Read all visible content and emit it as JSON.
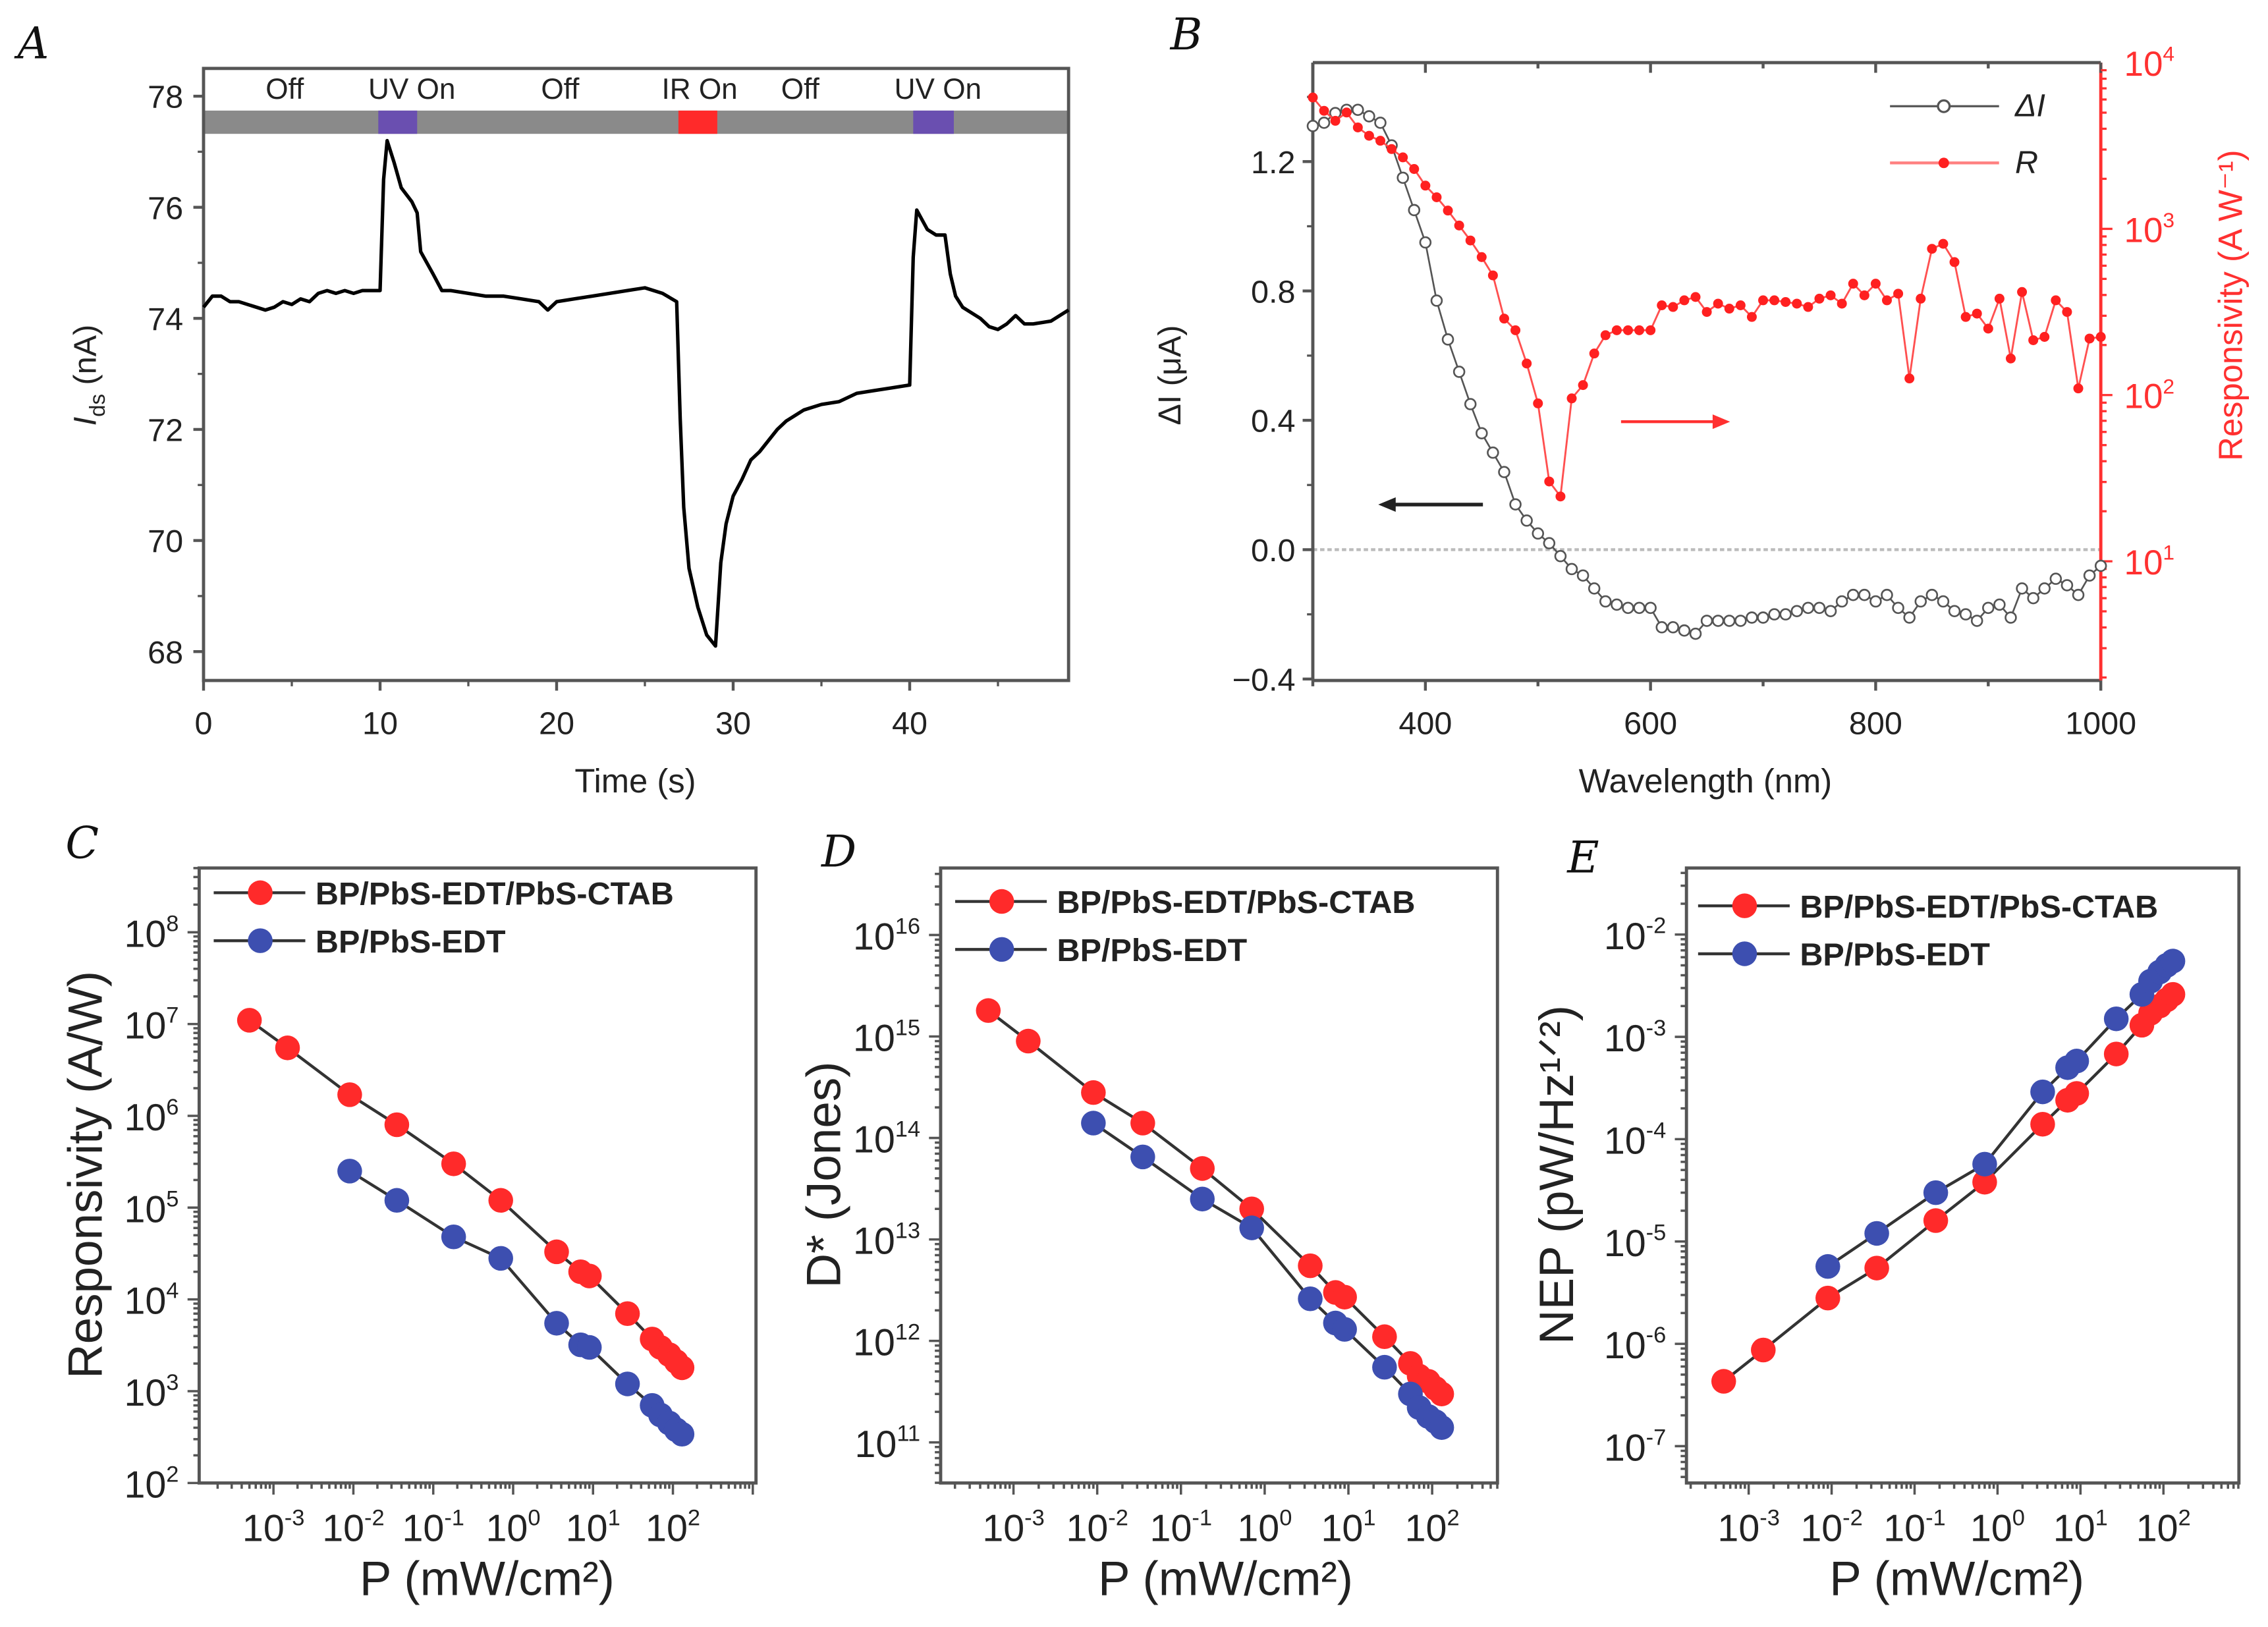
{
  "chart_data": [
    {
      "panel": "A",
      "type": "line",
      "xlabel": "Time (s)",
      "ylabel_main": "I",
      "ylabel_sub": "ds",
      "ylabel_unit": " (nA)",
      "xlim": [
        0,
        49
      ],
      "ylim": [
        67.48,
        78.5
      ],
      "xticks": [
        0,
        10,
        20,
        30,
        40
      ],
      "yticks": [
        68,
        70,
        72,
        74,
        76,
        78
      ],
      "status_labels": [
        {
          "label": "Off",
          "t": 4.6
        },
        {
          "label": "UV On",
          "t": 11.8
        },
        {
          "label": "Off",
          "t": 20.2
        },
        {
          "label": "IR On",
          "t": 28.1
        },
        {
          "label": "Off",
          "t": 33.8
        },
        {
          "label": "UV On",
          "t": 41.6
        }
      ],
      "light_intervals": [
        {
          "type": "UV",
          "start": 9.9,
          "end": 12.1,
          "color": "#6a4fb0"
        },
        {
          "type": "IR",
          "start": 26.9,
          "end": 29.1,
          "color": "#ff2a2a"
        },
        {
          "type": "UV",
          "start": 40.2,
          "end": 42.5,
          "color": "#6a4fb0"
        }
      ],
      "series": [
        {
          "name": "Ids",
          "color": "#000000",
          "points": [
            [
              0,
              74.2
            ],
            [
              0.5,
              74.4
            ],
            [
              1,
              74.4
            ],
            [
              1.5,
              74.3
            ],
            [
              2,
              74.3
            ],
            [
              2.5,
              74.25
            ],
            [
              3,
              74.2
            ],
            [
              3.5,
              74.15
            ],
            [
              4,
              74.2
            ],
            [
              4.5,
              74.3
            ],
            [
              5,
              74.25
            ],
            [
              5.5,
              74.35
            ],
            [
              6,
              74.3
            ],
            [
              6.5,
              74.45
            ],
            [
              7,
              74.5
            ],
            [
              7.5,
              74.45
            ],
            [
              8,
              74.5
            ],
            [
              8.5,
              74.45
            ],
            [
              9,
              74.5
            ],
            [
              9.5,
              74.5
            ],
            [
              10,
              74.5
            ],
            [
              10.2,
              76.5
            ],
            [
              10.4,
              77.2
            ],
            [
              10.8,
              76.8
            ],
            [
              11.2,
              76.35
            ],
            [
              11.8,
              76.1
            ],
            [
              12.1,
              75.9
            ],
            [
              12.3,
              75.2
            ],
            [
              13,
              74.8
            ],
            [
              13.5,
              74.5
            ],
            [
              14,
              74.5
            ],
            [
              15,
              74.45
            ],
            [
              16,
              74.4
            ],
            [
              17,
              74.4
            ],
            [
              18,
              74.35
            ],
            [
              19,
              74.3
            ],
            [
              19.5,
              74.15
            ],
            [
              20,
              74.3
            ],
            [
              21,
              74.35
            ],
            [
              22,
              74.4
            ],
            [
              23,
              74.45
            ],
            [
              24,
              74.5
            ],
            [
              25,
              74.55
            ],
            [
              26,
              74.45
            ],
            [
              26.8,
              74.3
            ],
            [
              27.0,
              72.2
            ],
            [
              27.2,
              70.6
            ],
            [
              27.5,
              69.5
            ],
            [
              28,
              68.8
            ],
            [
              28.5,
              68.3
            ],
            [
              29,
              68.1
            ],
            [
              29.3,
              69.6
            ],
            [
              29.6,
              70.3
            ],
            [
              30,
              70.8
            ],
            [
              30.5,
              71.1
            ],
            [
              31,
              71.45
            ],
            [
              31.5,
              71.6
            ],
            [
              32,
              71.8
            ],
            [
              32.5,
              72.0
            ],
            [
              33,
              72.15
            ],
            [
              33.5,
              72.25
            ],
            [
              34,
              72.35
            ],
            [
              35,
              72.45
            ],
            [
              36,
              72.5
            ],
            [
              37,
              72.65
            ],
            [
              38,
              72.7
            ],
            [
              39,
              72.75
            ],
            [
              40,
              72.8
            ],
            [
              40.2,
              75.1
            ],
            [
              40.4,
              75.95
            ],
            [
              41,
              75.6
            ],
            [
              41.5,
              75.5
            ],
            [
              42,
              75.5
            ],
            [
              42.3,
              74.8
            ],
            [
              42.6,
              74.4
            ],
            [
              43,
              74.2
            ],
            [
              44,
              74.0
            ],
            [
              44.5,
              73.85
            ],
            [
              45,
              73.8
            ],
            [
              45.5,
              73.9
            ],
            [
              46,
              74.05
            ],
            [
              46.5,
              73.9
            ],
            [
              47,
              73.9
            ],
            [
              48,
              73.95
            ],
            [
              49,
              74.15
            ]
          ]
        }
      ]
    },
    {
      "panel": "B",
      "type": "line",
      "xlabel": "Wavelength (nm)",
      "ylabel_left": "ΔI (μA)",
      "ylabel_right": "Responsivity (A W⁻¹)",
      "xlim": [
        300,
        1000
      ],
      "ylim_left": [
        -0.4045,
        1.506
      ],
      "ylim_right_log10": [
        0.283,
        4
      ],
      "xticks": [
        400,
        600,
        800,
        1000
      ],
      "yticks_left": [
        "−0.4",
        "0.0",
        "0.4",
        "0.8",
        "1.2"
      ],
      "yticks_left_values": [
        -0.4,
        0.0,
        0.4,
        0.8,
        1.2
      ],
      "yticks_right_exp": [
        1,
        2,
        3,
        4
      ],
      "legend": [
        {
          "name": "ΔI",
          "marker": "open-circle",
          "color": "#555555"
        },
        {
          "name": "R",
          "marker": "filled-circle",
          "color": "#ff2020"
        }
      ],
      "wavelengths": [
        300,
        310,
        320,
        330,
        340,
        350,
        360,
        370,
        380,
        390,
        400,
        410,
        420,
        430,
        440,
        450,
        460,
        470,
        480,
        490,
        500,
        510,
        520,
        530,
        540,
        550,
        560,
        570,
        580,
        590,
        600,
        610,
        620,
        630,
        640,
        650,
        660,
        670,
        680,
        690,
        700,
        710,
        720,
        730,
        740,
        750,
        760,
        770,
        780,
        790,
        800,
        810,
        820,
        830,
        840,
        850,
        860,
        870,
        880,
        890,
        900,
        910,
        920,
        930,
        940,
        950,
        960,
        970,
        980,
        990,
        1000
      ],
      "delta_I": [
        1.31,
        1.32,
        1.35,
        1.36,
        1.36,
        1.34,
        1.32,
        1.25,
        1.15,
        1.05,
        0.95,
        0.77,
        0.65,
        0.55,
        0.45,
        0.36,
        0.3,
        0.24,
        0.14,
        0.09,
        0.05,
        0.02,
        -0.02,
        -0.06,
        -0.08,
        -0.12,
        -0.16,
        -0.17,
        -0.18,
        -0.18,
        -0.18,
        -0.24,
        -0.24,
        -0.25,
        -0.26,
        -0.22,
        -0.22,
        -0.22,
        -0.22,
        -0.21,
        -0.21,
        -0.2,
        -0.2,
        -0.19,
        -0.18,
        -0.18,
        -0.19,
        -0.16,
        -0.14,
        -0.14,
        -0.16,
        -0.14,
        -0.18,
        -0.21,
        -0.16,
        -0.14,
        -0.16,
        -0.19,
        -0.2,
        -0.22,
        -0.18,
        -0.17,
        -0.21,
        -0.12,
        -0.15,
        -0.12,
        -0.09,
        -0.11,
        -0.14,
        -0.08,
        -0.05
      ],
      "R_log10": [
        3.79,
        3.71,
        3.65,
        3.7,
        3.61,
        3.56,
        3.53,
        3.48,
        3.43,
        3.36,
        3.26,
        3.19,
        3.11,
        3.02,
        2.93,
        2.83,
        2.72,
        2.46,
        2.39,
        2.19,
        1.95,
        1.48,
        1.39,
        1.98,
        2.06,
        2.25,
        2.36,
        2.39,
        2.39,
        2.39,
        2.39,
        2.54,
        2.53,
        2.57,
        2.59,
        2.5,
        2.55,
        2.52,
        2.54,
        2.47,
        2.57,
        2.57,
        2.56,
        2.55,
        2.53,
        2.58,
        2.6,
        2.55,
        2.67,
        2.6,
        2.67,
        2.57,
        2.61,
        2.1,
        2.58,
        2.88,
        2.91,
        2.8,
        2.47,
        2.49,
        2.4,
        2.58,
        2.22,
        2.62,
        2.33,
        2.35,
        2.57,
        2.5,
        2.04,
        2.34,
        2.35
      ]
    },
    {
      "panel": "C",
      "type": "scatter",
      "xlabel": "P (mW/cm²)",
      "ylabel": "Responsivity (A/W)",
      "xlim_log10": [
        -3.93,
        3.04
      ],
      "ylim_log10": [
        2,
        8.7
      ],
      "xticks_exp": [
        -3,
        -2,
        -1,
        0,
        1,
        2
      ],
      "yticks_exp": [
        2,
        3,
        4,
        5,
        6,
        7,
        8
      ],
      "series": [
        {
          "name": "BP/PbS-EDT/PbS-CTAB",
          "color": "#ff2a2a",
          "x": [
            0.0005,
            0.0015,
            0.009,
            0.035,
            0.18,
            0.7,
            3.5,
            7,
            9,
            27,
            55,
            70,
            90,
            110,
            130
          ],
          "y": [
            11000000.0,
            5500000.0,
            1700000.0,
            800000.0,
            300000.0,
            120000.0,
            33000.0,
            20000.0,
            18000.0,
            7000.0,
            3700.0,
            3000.0,
            2500.0,
            2100.0,
            1800.0
          ]
        },
        {
          "name": "BP/PbS-EDT",
          "color": "#3d4fb0",
          "x": [
            0.009,
            0.035,
            0.18,
            0.7,
            3.5,
            7,
            9,
            27,
            55,
            70,
            90,
            110,
            130
          ],
          "y": [
            250000.0,
            120000.0,
            48000.0,
            28000.0,
            5500.0,
            3200.0,
            3000.0,
            1200.0,
            700,
            550,
            450,
            380,
            340
          ]
        }
      ]
    },
    {
      "panel": "D",
      "type": "scatter",
      "xlabel": "P (mW/cm²)",
      "ylabel": "D* (Jones)",
      "xlim_log10": [
        -3.87,
        2.78
      ],
      "ylim_log10": [
        10.6,
        16.66
      ],
      "xticks_exp": [
        -3,
        -2,
        -1,
        0,
        1,
        2
      ],
      "yticks_exp": [
        11,
        12,
        13,
        14,
        15,
        16
      ],
      "series": [
        {
          "name": "BP/PbS-EDT/PbS-CTAB",
          "color": "#ff2a2a",
          "x": [
            0.0005,
            0.0015,
            0.009,
            0.035,
            0.18,
            0.7,
            3.5,
            7,
            9,
            27,
            55,
            70,
            90,
            110,
            130
          ],
          "y": [
            1800000000000000.0,
            900000000000000.0,
            280000000000000.0,
            140000000000000.0,
            50000000000000.0,
            20000000000000.0,
            5500000000000.0,
            3000000000000.0,
            2700000000000.0,
            1100000000000.0,
            600000000000.0,
            450000000000.0,
            400000000000.0,
            340000000000.0,
            300000000000.0
          ]
        },
        {
          "name": "BP/PbS-EDT",
          "color": "#3d4fb0",
          "x": [
            0.009,
            0.035,
            0.18,
            0.7,
            3.5,
            7,
            9,
            27,
            55,
            70,
            90,
            110,
            130
          ],
          "y": [
            140000000000000.0,
            65000000000000.0,
            25000000000000.0,
            13000000000000.0,
            2600000000000.0,
            1500000000000.0,
            1300000000000.0,
            550000000000.0,
            300000000000.0,
            220000000000.0,
            180000000000.0,
            160000000000.0,
            140000000000.0
          ]
        }
      ]
    },
    {
      "panel": "E",
      "type": "scatter",
      "xlabel": "P (mW/cm²)",
      "ylabel": "NEP (pW/Hz¹ᐟ²)",
      "xlim_log10": [
        -3.75,
        2.91
      ],
      "ylim_log10": [
        -7.36,
        -1.35
      ],
      "xticks_exp": [
        -3,
        -2,
        -1,
        0,
        1,
        2
      ],
      "yticks_exp": [
        -7,
        -6,
        -5,
        -4,
        -3,
        -2
      ],
      "series": [
        {
          "name": "BP/PbS-EDT/PbS-CTAB",
          "color": "#ff2a2a",
          "x": [
            0.0005,
            0.0015,
            0.009,
            0.035,
            0.18,
            0.7,
            3.5,
            7,
            9,
            27,
            55,
            70,
            90,
            110,
            130
          ],
          "y": [
            4.3e-07,
            8.7e-07,
            2.8e-06,
            5.5e-06,
            1.6e-05,
            3.8e-05,
            0.00014,
            0.00024,
            0.00028,
            0.00068,
            0.0013,
            0.0017,
            0.002,
            0.0023,
            0.0026
          ]
        },
        {
          "name": "BP/PbS-EDT",
          "color": "#3d4fb0",
          "x": [
            0.009,
            0.035,
            0.18,
            0.7,
            3.5,
            7,
            9,
            27,
            55,
            70,
            90,
            110,
            130
          ],
          "y": [
            5.7e-06,
            1.2e-05,
            3e-05,
            5.7e-05,
            0.00029,
            0.0005,
            0.00058,
            0.0015,
            0.0026,
            0.0035,
            0.0043,
            0.005,
            0.0055
          ]
        }
      ]
    }
  ]
}
